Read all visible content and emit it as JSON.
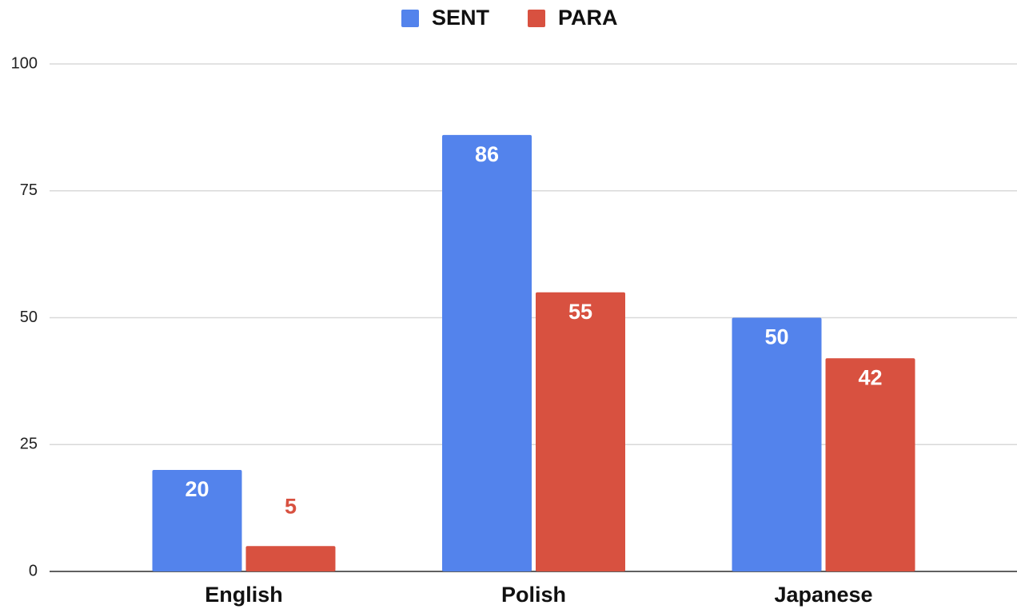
{
  "chart_data": {
    "type": "bar",
    "categories": [
      "English",
      "Polish",
      "Japanese"
    ],
    "series": [
      {
        "name": "SENT",
        "color": "#5383ec",
        "values": [
          20,
          86,
          50
        ]
      },
      {
        "name": "PARA",
        "color": "#d85140",
        "values": [
          5,
          55,
          42
        ]
      }
    ],
    "ylim": [
      0,
      100
    ],
    "yticks": [
      0,
      25,
      50,
      75,
      100
    ],
    "grid": true,
    "legend": "top"
  }
}
